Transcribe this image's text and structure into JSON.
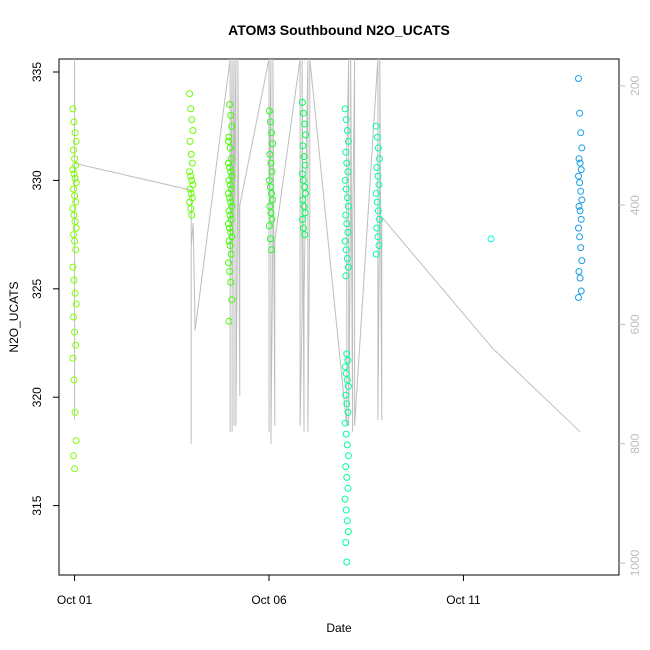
{
  "chart_data": {
    "type": "scatter",
    "title": "ATOM3 Southbound N2O_UCATS",
    "xlabel": "Date",
    "ylabel": "N2O_UCATS",
    "x_ticks": [
      {
        "day": 1,
        "label": "Oct 01"
      },
      {
        "day": 6,
        "label": "Oct 06"
      },
      {
        "day": 11,
        "label": "Oct 11"
      }
    ],
    "y_ticks": [
      315,
      320,
      325,
      330,
      335
    ],
    "y2_ticks": [
      200,
      400,
      600,
      800,
      1000
    ],
    "xlim": [
      0.6,
      15.0
    ],
    "ylim": [
      311.8,
      335.6
    ],
    "y2lim": [
      1020,
      155
    ],
    "point_groups": [
      {
        "day": 1.0,
        "color": "#80ff00",
        "values": [
          333.3,
          332.7,
          332.2,
          331.8,
          331.4,
          331.0,
          330.7,
          330.5,
          330.3,
          330.1,
          329.9,
          329.6,
          329.3,
          329.0,
          328.7,
          328.4,
          328.1,
          327.8,
          327.5,
          327.2,
          326.8,
          326.0,
          325.4,
          324.8,
          324.3,
          323.7,
          323.0,
          322.4,
          321.8,
          320.8,
          319.3,
          318.0,
          317.3,
          316.7
        ]
      },
      {
        "day": 4.0,
        "color": "#66ff00",
        "values": [
          334.0,
          333.3,
          332.8,
          332.3,
          331.8,
          331.2,
          330.8,
          330.4,
          330.2,
          330.0,
          329.8,
          329.6,
          329.4,
          329.2,
          329.0,
          328.7,
          328.4
        ]
      },
      {
        "day": 5.0,
        "color": "#40ff00",
        "values": [
          331.8,
          333.5,
          333.0,
          332.5,
          332.0,
          331.5,
          331.0,
          330.8,
          330.6,
          330.4,
          330.2,
          330.0,
          329.8,
          329.6,
          329.4,
          329.2,
          329.0,
          328.8,
          328.6,
          328.4,
          328.2,
          328.0,
          327.8,
          327.6,
          327.4,
          327.2,
          327.0,
          326.6,
          326.2,
          325.8,
          325.3,
          324.5,
          323.5
        ]
      },
      {
        "day": 6.05,
        "color": "#20ff20",
        "values": [
          333.2,
          332.7,
          332.2,
          331.7,
          331.2,
          330.8,
          330.4,
          330.0,
          329.7,
          329.4,
          329.1,
          328.8,
          328.5,
          328.2,
          327.9,
          327.3,
          326.8
        ]
      },
      {
        "day": 6.9,
        "color": "#00ff55",
        "values": [
          333.6,
          333.1,
          332.6,
          332.1,
          331.6,
          331.1,
          330.7,
          330.3,
          330.0,
          329.7,
          329.4,
          329.1,
          328.8,
          328.5,
          328.2,
          327.8,
          327.5
        ]
      },
      {
        "day": 8.0,
        "color": "#00ff99",
        "values": [
          333.3,
          332.8,
          332.3,
          331.8,
          331.3,
          330.8,
          330.4,
          330.0,
          329.6,
          329.2,
          328.8,
          328.4,
          328.0,
          327.6,
          327.2,
          326.8,
          326.4,
          326.0,
          325.6,
          322.0,
          321.7,
          321.4,
          321.1,
          320.8,
          320.5,
          320.1,
          319.7,
          319.3,
          318.8,
          318.3,
          317.8,
          317.3,
          316.8,
          316.3,
          315.8,
          315.3,
          314.8,
          314.3,
          313.8,
          313.3,
          312.4
        ]
      },
      {
        "day": 8.8,
        "color": "#00ffb0",
        "values": [
          332.5,
          332.0,
          331.5,
          331.0,
          330.6,
          330.2,
          329.8,
          329.4,
          329.0,
          328.6,
          328.2,
          327.8,
          327.4,
          327.0,
          326.6
        ]
      },
      {
        "day": 11.75,
        "color": "#00ffdd",
        "values": [
          327.3
        ]
      },
      {
        "day": 14.0,
        "color": "#1a9ee6",
        "values": [
          334.7,
          333.1,
          332.2,
          331.5,
          331.0,
          330.8,
          330.5,
          330.2,
          329.9,
          329.5,
          329.1,
          328.8,
          328.6,
          328.2,
          327.8,
          327.4,
          326.9,
          326.3,
          325.8,
          325.5,
          324.9,
          324.6
        ]
      }
    ],
    "altitude_trace_days": [
      1.0,
      1.0,
      1.0,
      1.0,
      4.0,
      4.0,
      4.0,
      4.0,
      4.05,
      4.1,
      5.0,
      5.0,
      5.0,
      5.05,
      5.05,
      5.05,
      5.1,
      5.1,
      5.1,
      5.15,
      5.15,
      5.2,
      5.2,
      5.25,
      5.25,
      6.0,
      6.0,
      6.0,
      6.05,
      6.05,
      6.1,
      6.1,
      6.15,
      6.15,
      6.8,
      6.8,
      6.85,
      6.85,
      6.9,
      6.9,
      7.0,
      7.0,
      7.05,
      7.05,
      8.0,
      8.0,
      8.0,
      8.05,
      8.05,
      8.1,
      8.1,
      8.15,
      8.15,
      8.2,
      8.2,
      8.8,
      8.8,
      8.85,
      8.85,
      8.9,
      8.9,
      11.75,
      14.0
    ],
    "altitude_trace_values": [
      155,
      760,
      340,
      330,
      375,
      430,
      800,
      470,
      430,
      610,
      155,
      780,
      540,
      155,
      780,
      570,
      155,
      770,
      440,
      155,
      770,
      330,
      155,
      720,
      400,
      155,
      780,
      430,
      155,
      800,
      440,
      155,
      770,
      460,
      155,
      770,
      580,
      155,
      780,
      560,
      155,
      780,
      410,
      155,
      770,
      500,
      310,
      155,
      770,
      380,
      155,
      780,
      450,
      155,
      770,
      155,
      760,
      380,
      155,
      760,
      420,
      640,
      780
    ]
  }
}
